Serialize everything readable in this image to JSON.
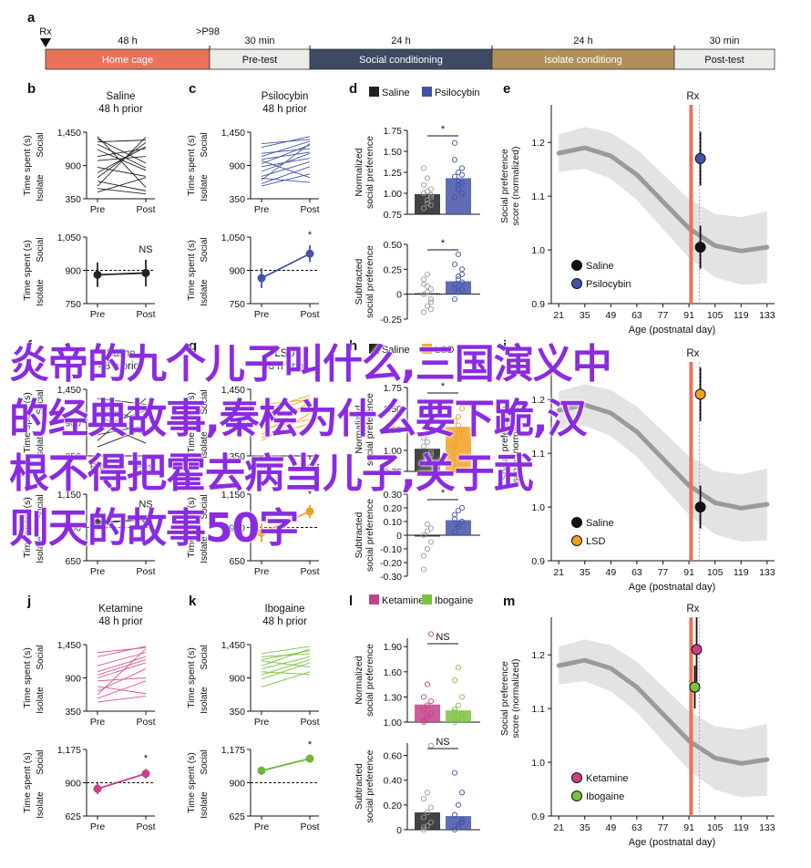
{
  "timeline": {
    "panel": "a",
    "markers": [
      "Rx",
      ">P98"
    ],
    "segments": [
      {
        "label": "Home cage",
        "duration": "48 h",
        "color": "#e8735a"
      },
      {
        "label": "Pre-test",
        "duration": "30 min",
        "color": "#e9ece7"
      },
      {
        "label": "Social conditioning",
        "duration": "24 h",
        "color": "#3d4a63"
      },
      {
        "label": "Isolate conditiong",
        "duration": "24 h",
        "color": "#b08f58"
      },
      {
        "label": "Post-test",
        "duration": "30 min",
        "color": "#e9ece7"
      }
    ]
  },
  "overlay_lines": [
    "炎帝的九个儿子叫什么,三国演义中",
    "的经典故事,秦桧为什么要下跪,汉",
    "根不得把霍去病当儿子,关于武",
    "则天的故事50字"
  ],
  "chart_data": [
    {
      "panel": "b",
      "type": "line",
      "title": "Saline",
      "subtitle": "48 h prior",
      "ylabel": "Time spent (s)",
      "ylabel_top": "Social",
      "ylabel_bottom": "Isolate",
      "categories": [
        "Pre",
        "Post"
      ],
      "yticks": [
        "1,450",
        "900",
        "350"
      ],
      "ylim": [
        350,
        1450
      ],
      "color": "#222222",
      "pairs": [
        [
          780,
          1210
        ],
        [
          1250,
          860
        ],
        [
          560,
          1370
        ],
        [
          1380,
          540
        ],
        [
          870,
          720
        ],
        [
          1050,
          1180
        ],
        [
          640,
          480
        ],
        [
          1290,
          1320
        ],
        [
          980,
          1050
        ],
        [
          460,
          700
        ],
        [
          1160,
          820
        ],
        [
          700,
          1280
        ],
        [
          1340,
          940
        ],
        [
          520,
          430
        ]
      ]
    },
    {
      "panel": "b",
      "type": "line",
      "ylabel": "Time spent (s)",
      "ylabel_top": "Social",
      "ylabel_bottom": "Isolate",
      "categories": [
        "Pre",
        "Post"
      ],
      "yticks": [
        "1,050",
        "900",
        "750"
      ],
      "ylim": [
        750,
        1050
      ],
      "color": "#222222",
      "annotation": "NS",
      "baseline": 900,
      "mean": [
        880,
        888
      ],
      "err": [
        55,
        60
      ]
    },
    {
      "panel": "c",
      "type": "line",
      "title": "Psilocybin",
      "subtitle": "48 h prior",
      "ylabel": "Time spent (s)",
      "ylabel_top": "Social",
      "ylabel_bottom": "Isolate",
      "categories": [
        "Pre",
        "Post"
      ],
      "yticks": [
        "1,450",
        "900",
        "350"
      ],
      "ylim": [
        350,
        1450
      ],
      "color": "#4353a8",
      "pairs": [
        [
          660,
          1260
        ],
        [
          1200,
          1380
        ],
        [
          880,
          1020
        ],
        [
          720,
          960
        ],
        [
          1050,
          1300
        ],
        [
          980,
          700
        ],
        [
          600,
          880
        ],
        [
          1100,
          1180
        ],
        [
          800,
          1100
        ],
        [
          1260,
          1330
        ],
        [
          690,
          620
        ],
        [
          930,
          1240
        ],
        [
          560,
          760
        ],
        [
          1000,
          1120
        ]
      ]
    },
    {
      "panel": "c",
      "type": "line",
      "ylabel": "Time spent (s)",
      "ylabel_top": "Social",
      "ylabel_bottom": "Isolate",
      "categories": [
        "Pre",
        "Post"
      ],
      "yticks": [
        "1,050",
        "900",
        "750"
      ],
      "ylim": [
        750,
        1050
      ],
      "color": "#4353a8",
      "annotation": "*",
      "baseline": 900,
      "mean": [
        865,
        975
      ],
      "err": [
        45,
        38
      ]
    },
    {
      "panel": "d",
      "type": "bar",
      "legend": [
        "Saline",
        "Psilocybin"
      ],
      "legend_colors": [
        "#222222",
        "#4353a8"
      ],
      "ylabel": "Normalized social preference",
      "yticks": [
        "1.75",
        "1.50",
        "1.25",
        "1.00",
        "0.75"
      ],
      "ylim": [
        0.75,
        1.75
      ],
      "values": [
        0.99,
        1.18
      ],
      "annotation": "*",
      "dots": [
        [
          0.82,
          0.88,
          0.95,
          1.0,
          1.02,
          1.05,
          1.1,
          0.92,
          0.98,
          1.3,
          1.18,
          0.86
        ],
        [
          0.95,
          1.05,
          1.12,
          1.2,
          1.25,
          1.3,
          1.4,
          1.1,
          1.0,
          1.6,
          1.15,
          1.22
        ]
      ]
    },
    {
      "panel": "d",
      "type": "bar",
      "ylabel": "Subtracted social preference",
      "yticks": [
        "0.50",
        "0.25",
        "0",
        "-0.25"
      ],
      "ylim": [
        -0.25,
        0.5
      ],
      "values": [
        0.01,
        0.13
      ],
      "annotation": "*",
      "dots": [
        [
          -0.18,
          -0.12,
          -0.05,
          0,
          0.02,
          0.05,
          0.1,
          0.2,
          -0.08,
          0.15,
          0.08,
          -0.15
        ],
        [
          -0.05,
          0.02,
          0.05,
          0.1,
          0.15,
          0.2,
          0.3,
          0.4,
          0.12,
          0.06,
          0.18,
          0.25
        ]
      ]
    },
    {
      "panel": "e",
      "type": "scatter",
      "title": "",
      "ylabel": "Social preference score (normalized)",
      "xlabel": "Age (postnatal day)",
      "xticks": [
        21,
        35,
        49,
        63,
        77,
        91,
        105,
        119,
        133
      ],
      "xlim": [
        17,
        137
      ],
      "yticks": [
        "1.2",
        "1.1",
        "1.0",
        "0.9"
      ],
      "ylim": [
        0.9,
        1.27
      ],
      "rx_day": 98,
      "annotation": "Rx",
      "legend": [
        "Saline",
        "Psilocybin"
      ],
      "legend_colors": [
        "#111111",
        "#4353a8"
      ],
      "points": [
        {
          "x": 103,
          "y": 1.005,
          "err": 0.04,
          "color": "#111111"
        },
        {
          "x": 103,
          "y": 1.17,
          "err": 0.05,
          "color": "#4353a8"
        }
      ],
      "curve": [
        [
          21,
          1.18
        ],
        [
          35,
          1.19
        ],
        [
          49,
          1.175
        ],
        [
          63,
          1.14
        ],
        [
          77,
          1.09
        ],
        [
          91,
          1.04
        ],
        [
          105,
          1.008
        ],
        [
          119,
          0.998
        ],
        [
          133,
          1.005
        ]
      ]
    },
    {
      "panel": "f",
      "type": "line",
      "title": "Saline",
      "subtitle": "48 h prior",
      "ylabel": "Time spent (s)",
      "ylabel_top": "Social",
      "ylabel_bottom": "Isolate",
      "categories": [
        "Pre",
        "Post"
      ],
      "yticks": [
        "1,450",
        "900",
        "350"
      ],
      "ylim": [
        350,
        1450
      ],
      "color": "#222222",
      "pairs": [
        [
          820,
          1100
        ],
        [
          1200,
          900
        ],
        [
          600,
          1300
        ],
        [
          1000,
          700
        ],
        [
          700,
          850
        ],
        [
          1300,
          1200
        ],
        [
          900,
          560
        ],
        [
          500,
          800
        ]
      ]
    },
    {
      "panel": "f",
      "type": "line",
      "ylabel": "Time spent (s)",
      "ylabel_top": "Social",
      "ylabel_bottom": "Isolate",
      "categories": [
        "Pre",
        "Post"
      ],
      "yticks": [
        "1,150",
        "900",
        "650"
      ],
      "ylim": [
        650,
        1150
      ],
      "color": "#222222",
      "annotation": "NS",
      "baseline": 900,
      "mean": [
        935,
        960
      ],
      "err": [
        40,
        35
      ]
    },
    {
      "panel": "g",
      "type": "line",
      "title": "LSD",
      "subtitle": "48 h prior",
      "ylabel": "Time spent (s)",
      "ylabel_top": "Social",
      "ylabel_bottom": "Isolate",
      "categories": [
        "Pre",
        "Post"
      ],
      "yticks": [
        "1,450",
        "900",
        "350"
      ],
      "ylim": [
        350,
        1450
      ],
      "color": "#f0a020",
      "pairs": [
        [
          700,
          1250
        ],
        [
          1100,
          1350
        ],
        [
          900,
          1200
        ],
        [
          600,
          1050
        ],
        [
          1000,
          1300
        ],
        [
          800,
          950
        ],
        [
          1200,
          1280
        ],
        [
          650,
          880
        ]
      ]
    },
    {
      "panel": "g",
      "type": "line",
      "ylabel": "Time spent (s)",
      "ylabel_top": "Social",
      "ylabel_bottom": "Isolate",
      "categories": [
        "Pre",
        "Post"
      ],
      "yticks": [
        "1,150",
        "900",
        "650"
      ],
      "ylim": [
        650,
        1150
      ],
      "color": "#f0a020",
      "annotation": "*",
      "baseline": 900,
      "mean": [
        860,
        1020
      ],
      "err": [
        70,
        50
      ]
    },
    {
      "panel": "h",
      "type": "bar",
      "legend": [
        "Saline",
        "LSD"
      ],
      "legend_colors": [
        "#222222",
        "#f0a020"
      ],
      "ylabel": "Normalized social preference",
      "yticks": [
        "1.75",
        "1.50",
        "1.25",
        "1.00",
        "0.75"
      ],
      "ylim": [
        0.75,
        1.75
      ],
      "values": [
        1.02,
        1.28
      ],
      "annotation": "*",
      "dots": [
        [
          0.85,
          0.92,
          0.98,
          1.05,
          1.1,
          0.95,
          1.15,
          0.88
        ],
        [
          1.05,
          1.15,
          1.25,
          1.35,
          1.4,
          1.5,
          1.2,
          1.3
        ]
      ]
    },
    {
      "panel": "h",
      "type": "bar",
      "ylabel": "Subtracted social preference",
      "yticks": [
        "0.30",
        "0.20",
        "0.10",
        "0",
        "-0.10",
        "-0.20",
        "-0.30"
      ],
      "ylim": [
        -0.3,
        0.3
      ],
      "values": [
        0.0,
        0.11
      ],
      "annotation": "*",
      "dots": [
        [
          -0.25,
          -0.1,
          -0.05,
          0,
          0.03,
          0.05,
          -0.15,
          0.08
        ],
        [
          0.02,
          0.06,
          0.1,
          0.15,
          0.18,
          0.2,
          0.12,
          0.08
        ]
      ]
    },
    {
      "panel": "i",
      "type": "scatter",
      "ylabel": "Social preference score (normalized)",
      "xlabel": "Age (postnatal day)",
      "xticks": [
        21,
        35,
        49,
        63,
        77,
        91,
        105,
        119,
        133
      ],
      "xlim": [
        17,
        137
      ],
      "yticks": [
        "1.2",
        "1.1",
        "1.0",
        "0.9"
      ],
      "ylim": [
        0.9,
        1.27
      ],
      "rx_day": 98,
      "annotation": "Rx",
      "legend": [
        "Saline",
        "LSD"
      ],
      "legend_colors": [
        "#111111",
        "#f0a020"
      ],
      "points": [
        {
          "x": 103,
          "y": 1.0,
          "err": 0.04,
          "color": "#111111"
        },
        {
          "x": 103,
          "y": 1.21,
          "err": 0.05,
          "color": "#f0a020"
        }
      ],
      "curve": [
        [
          21,
          1.18
        ],
        [
          35,
          1.19
        ],
        [
          49,
          1.175
        ],
        [
          63,
          1.14
        ],
        [
          77,
          1.09
        ],
        [
          91,
          1.04
        ],
        [
          105,
          1.008
        ],
        [
          119,
          0.998
        ],
        [
          133,
          1.005
        ]
      ]
    },
    {
      "panel": "j",
      "type": "line",
      "title": "Ketamine",
      "subtitle": "48 h prior",
      "ylabel": "Time spent (s)",
      "ylabel_top": "Social",
      "ylabel_bottom": "Isolate",
      "categories": [
        "Pre",
        "Post"
      ],
      "yticks": [
        "1,450",
        "900",
        "350"
      ],
      "ylim": [
        350,
        1450
      ],
      "color": "#d6529a",
      "pairs": [
        [
          620,
          1380
        ],
        [
          1250,
          1420
        ],
        [
          900,
          1150
        ],
        [
          560,
          850
        ],
        [
          1100,
          1320
        ],
        [
          760,
          640
        ],
        [
          1000,
          1250
        ],
        [
          680,
          1050
        ],
        [
          1320,
          1400
        ],
        [
          850,
          900
        ],
        [
          500,
          600
        ],
        [
          950,
          1200
        ]
      ]
    },
    {
      "panel": "j",
      "type": "line",
      "ylabel": "Time spent (s)",
      "ylabel_top": "Social",
      "ylabel_bottom": "Isolate",
      "categories": [
        "Pre",
        "Post"
      ],
      "yticks": [
        "1,175",
        "900",
        "625"
      ],
      "ylim": [
        625,
        1175
      ],
      "color": "#c4428a",
      "annotation": "*",
      "baseline": 900,
      "mean": [
        850,
        975
      ],
      "err": [
        45,
        40
      ]
    },
    {
      "panel": "k",
      "type": "line",
      "title": "Ibogaine",
      "subtitle": "48 h prior",
      "ylabel": "Time spent (s)",
      "ylabel_top": "Social",
      "ylabel_bottom": "Isolate",
      "categories": [
        "Pre",
        "Post"
      ],
      "yticks": [
        "1,450",
        "900",
        "350"
      ],
      "ylim": [
        350,
        1450
      ],
      "color": "#7cc241",
      "pairs": [
        [
          1100,
          1380
        ],
        [
          1250,
          1300
        ],
        [
          950,
          1200
        ],
        [
          1180,
          1080
        ],
        [
          1300,
          1420
        ],
        [
          1050,
          1250
        ],
        [
          880,
          1150
        ],
        [
          1200,
          1350
        ],
        [
          750,
          1000
        ],
        [
          1000,
          960
        ]
      ]
    },
    {
      "panel": "k",
      "type": "line",
      "ylabel": "Time spent (s)",
      "ylabel_top": "Social",
      "ylabel_bottom": "Isolate",
      "categories": [
        "Pre",
        "Post"
      ],
      "yticks": [
        "1,175",
        "900",
        "625"
      ],
      "ylim": [
        625,
        1175
      ],
      "color": "#6fb53a",
      "annotation": "*",
      "baseline": 900,
      "mean": [
        1000,
        1100
      ],
      "err": [
        35,
        30
      ]
    },
    {
      "panel": "l",
      "type": "bar",
      "legend": [
        "Ketamine",
        "Ibogaine"
      ],
      "legend_colors": [
        "#c4428a",
        "#7cc241"
      ],
      "ylabel": "Normalized social preference",
      "yticks": [
        "1.90",
        "1.60",
        "1.30",
        "1.00"
      ],
      "ylim": [
        1.0,
        2.0
      ],
      "values": [
        1.21,
        1.14
      ],
      "annotation": "NS",
      "dots": [
        [
          1.0,
          1.05,
          1.1,
          1.15,
          1.2,
          1.25,
          1.3,
          1.45,
          2.05,
          1.02,
          1.08
        ],
        [
          1.0,
          1.05,
          1.1,
          1.15,
          1.2,
          1.3,
          1.5,
          1.65,
          1.03,
          1.12
        ]
      ]
    },
    {
      "panel": "l",
      "type": "bar",
      "ylabel": "Subtracted social preference",
      "yticks": [
        "0.60",
        "0.40",
        "0.20",
        "0"
      ],
      "ylim": [
        0,
        0.7
      ],
      "values": [
        0.14,
        0.11
      ],
      "annotation": "NS",
      "dots": [
        [
          0.0,
          0.03,
          0.06,
          0.1,
          0.14,
          0.18,
          0.25,
          0.3,
          0.68,
          0.02
        ],
        [
          0.0,
          0.04,
          0.08,
          0.12,
          0.2,
          0.3,
          0.46,
          0.02,
          0.06
        ]
      ]
    },
    {
      "panel": "m",
      "type": "scatter",
      "ylabel": "Social preference score (normalized)",
      "xlabel": "Age (postnatal day)",
      "xticks": [
        21,
        35,
        49,
        63,
        77,
        91,
        105,
        119,
        133
      ],
      "xlim": [
        17,
        137
      ],
      "yticks": [
        "1.2",
        "1.1",
        "1.0",
        "0.9"
      ],
      "ylim": [
        0.9,
        1.27
      ],
      "rx_day": 98,
      "annotation": "Rx",
      "legend": [
        "Ketamine",
        "Ibogaine"
      ],
      "legend_colors": [
        "#c4428a",
        "#7cc241"
      ],
      "points": [
        {
          "x": 101,
          "y": 1.21,
          "err": 0.06,
          "color": "#c4428a"
        },
        {
          "x": 100,
          "y": 1.14,
          "err": 0.04,
          "color": "#7cc241"
        }
      ],
      "curve": [
        [
          21,
          1.18
        ],
        [
          35,
          1.19
        ],
        [
          49,
          1.175
        ],
        [
          63,
          1.14
        ],
        [
          77,
          1.09
        ],
        [
          91,
          1.04
        ],
        [
          105,
          1.008
        ],
        [
          119,
          0.998
        ],
        [
          133,
          1.005
        ]
      ]
    }
  ]
}
